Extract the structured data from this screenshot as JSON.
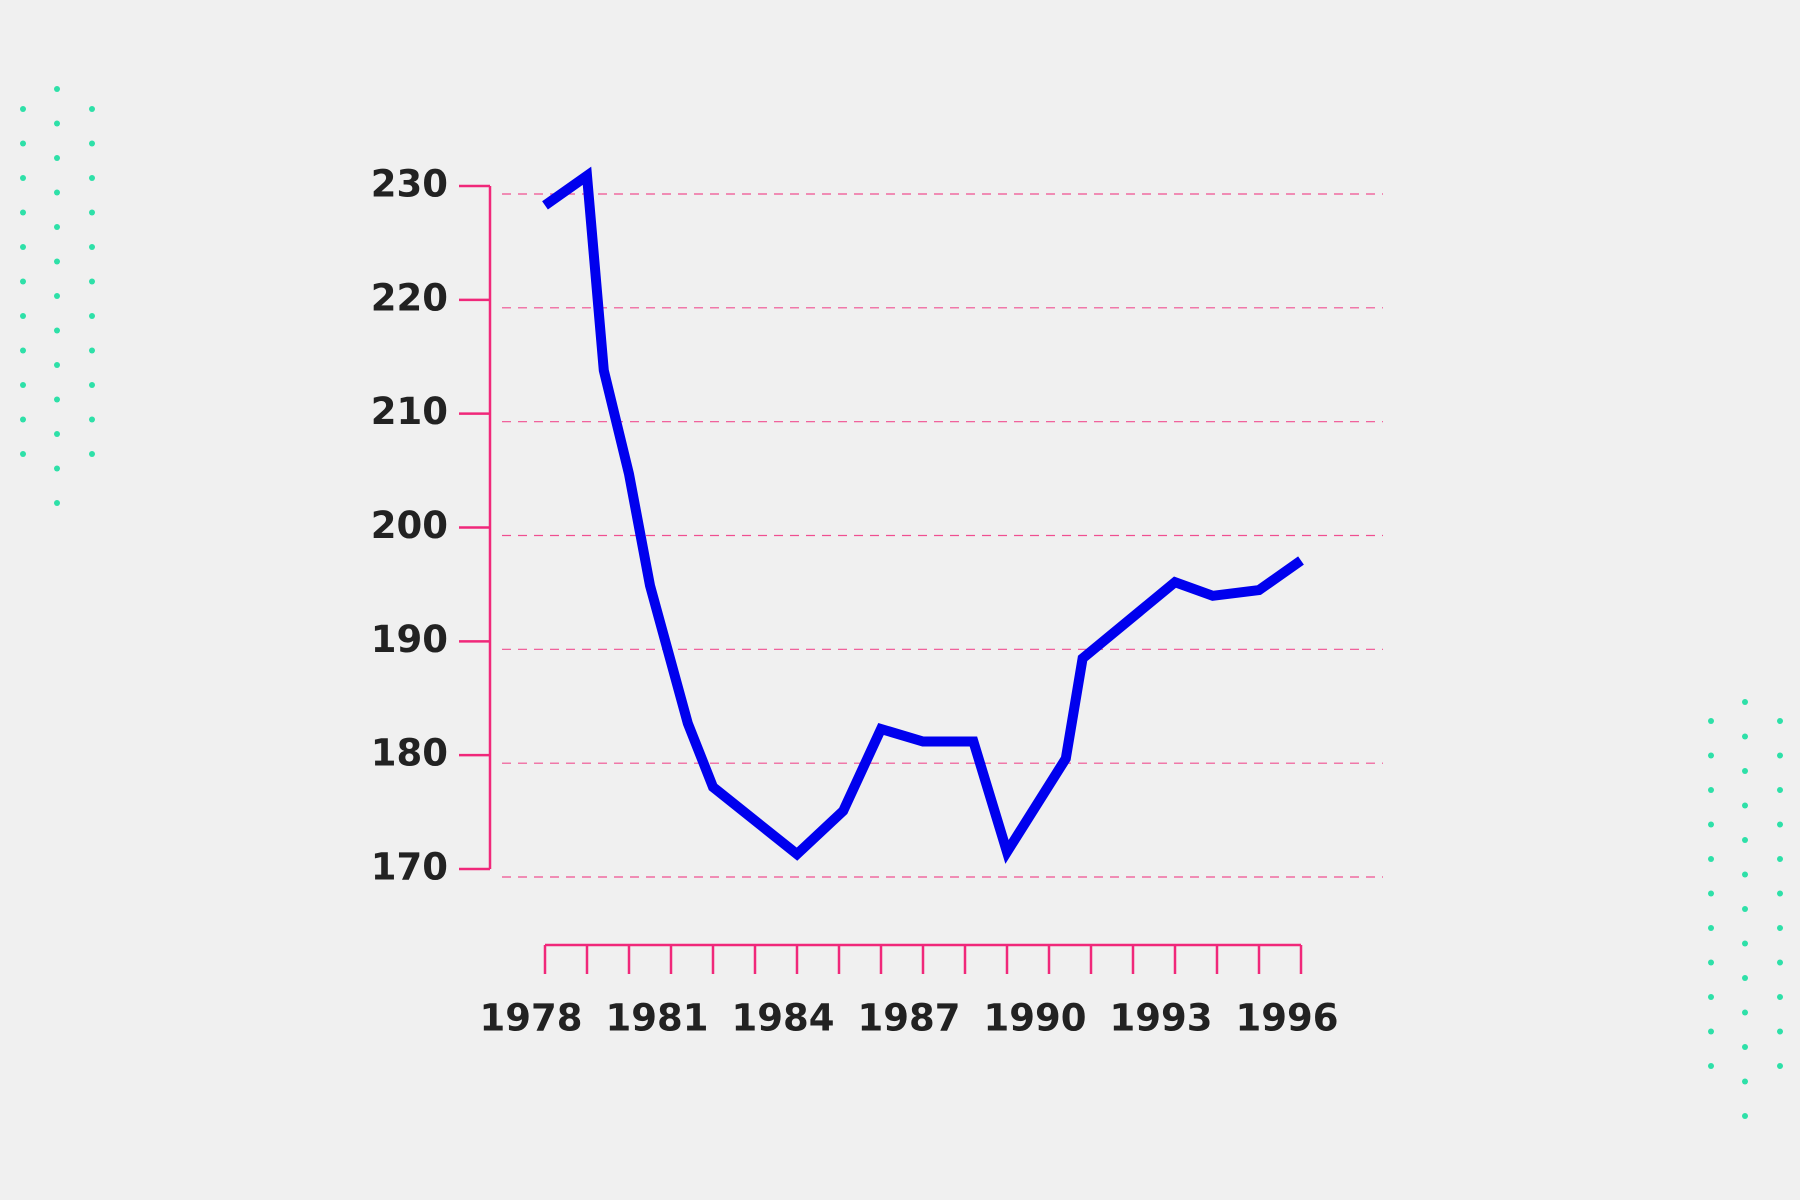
{
  "chart_data": {
    "type": "line",
    "x": [
      1978,
      1979,
      1979.4,
      1980,
      1980.5,
      1981.4,
      1982,
      1984,
      1985.1,
      1986,
      1987,
      1988.2,
      1989,
      1990.4,
      1990.8,
      1993,
      1993.9,
      1995,
      1996
    ],
    "series": [
      {
        "color": "#0000ee",
        "values": [
          228.3,
          230.9,
          213.8,
          204.7,
          194.9,
          182.8,
          177.2,
          171.3,
          175.1,
          182.3,
          181.2,
          181.2,
          171.5,
          179.7,
          188.5,
          195.2,
          194.0,
          194.5,
          197.1
        ]
      }
    ],
    "xlim": [
      1978,
      1996
    ],
    "xticks": [
      1978,
      1981,
      1984,
      1987,
      1990,
      1993,
      1996
    ],
    "xminorticks": [
      1978,
      1979,
      1980,
      1981,
      1982,
      1983,
      1984,
      1985,
      1986,
      1987,
      1988,
      1989,
      1990,
      1991,
      1992,
      1993,
      1994,
      1995,
      1996
    ],
    "ylim": [
      170,
      230
    ],
    "yticks": [
      170,
      180,
      190,
      200,
      210,
      220,
      230
    ],
    "grid": true,
    "axis_color": "#f0287a"
  }
}
